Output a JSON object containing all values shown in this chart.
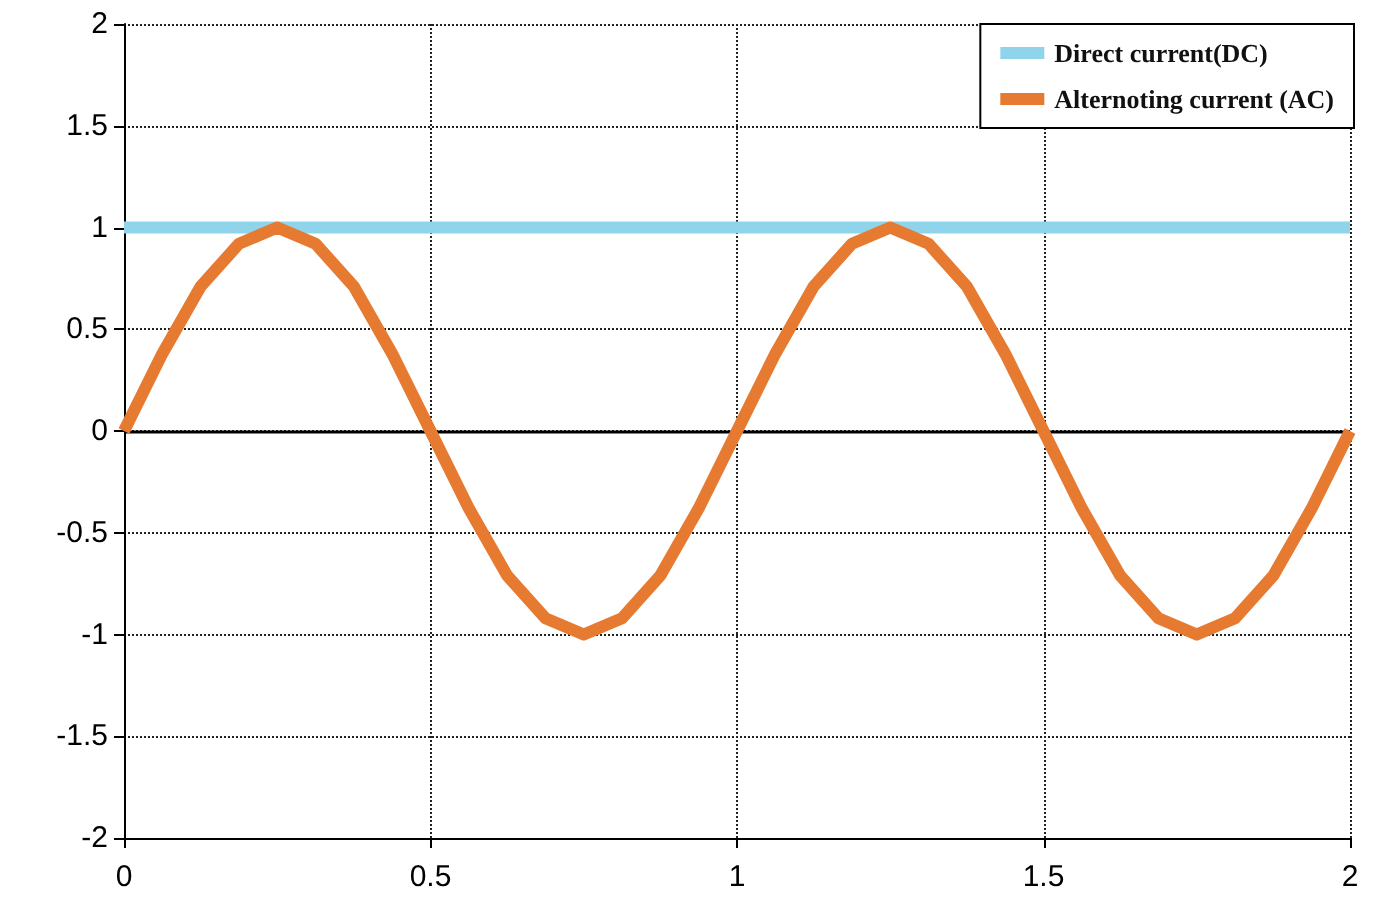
{
  "chart_data": {
    "type": "line",
    "x": [
      0,
      0.0625,
      0.125,
      0.1875,
      0.25,
      0.3125,
      0.375,
      0.4375,
      0.5,
      0.5625,
      0.625,
      0.6875,
      0.75,
      0.8125,
      0.875,
      0.9375,
      1,
      1.0625,
      1.125,
      1.1875,
      1.25,
      1.3125,
      1.375,
      1.4375,
      1.5,
      1.5625,
      1.625,
      1.6875,
      1.75,
      1.8125,
      1.875,
      1.9375,
      2
    ],
    "series": [
      {
        "name": "Direct current(DC)",
        "color": "#8fd4ea",
        "x": [
          0,
          2
        ],
        "values": [
          1,
          1
        ]
      },
      {
        "name": "Alternoting current (AC)",
        "color": "#e67a30",
        "values": [
          0,
          0.38,
          0.71,
          0.92,
          1,
          0.92,
          0.71,
          0.38,
          0,
          -0.38,
          -0.71,
          -0.92,
          -1,
          -0.92,
          -0.71,
          -0.38,
          0,
          0.38,
          0.71,
          0.92,
          1,
          0.92,
          0.71,
          0.38,
          0,
          -0.38,
          -0.71,
          -0.92,
          -1,
          -0.92,
          -0.71,
          -0.38,
          0
        ]
      }
    ],
    "xlim": [
      0,
      2
    ],
    "xticks": [
      0,
      0.5,
      1,
      1.5,
      2
    ],
    "ylim": [
      -2,
      2
    ],
    "yticks": [
      -2,
      -1.5,
      -1,
      -0.5,
      0,
      0.5,
      1,
      1.5,
      2
    ],
    "ref_lines": [
      {
        "axis": "y",
        "value": 0,
        "color": "#000000"
      }
    ],
    "grid": true,
    "legend": "top right",
    "marker": "none",
    "line_style": "solid"
  }
}
